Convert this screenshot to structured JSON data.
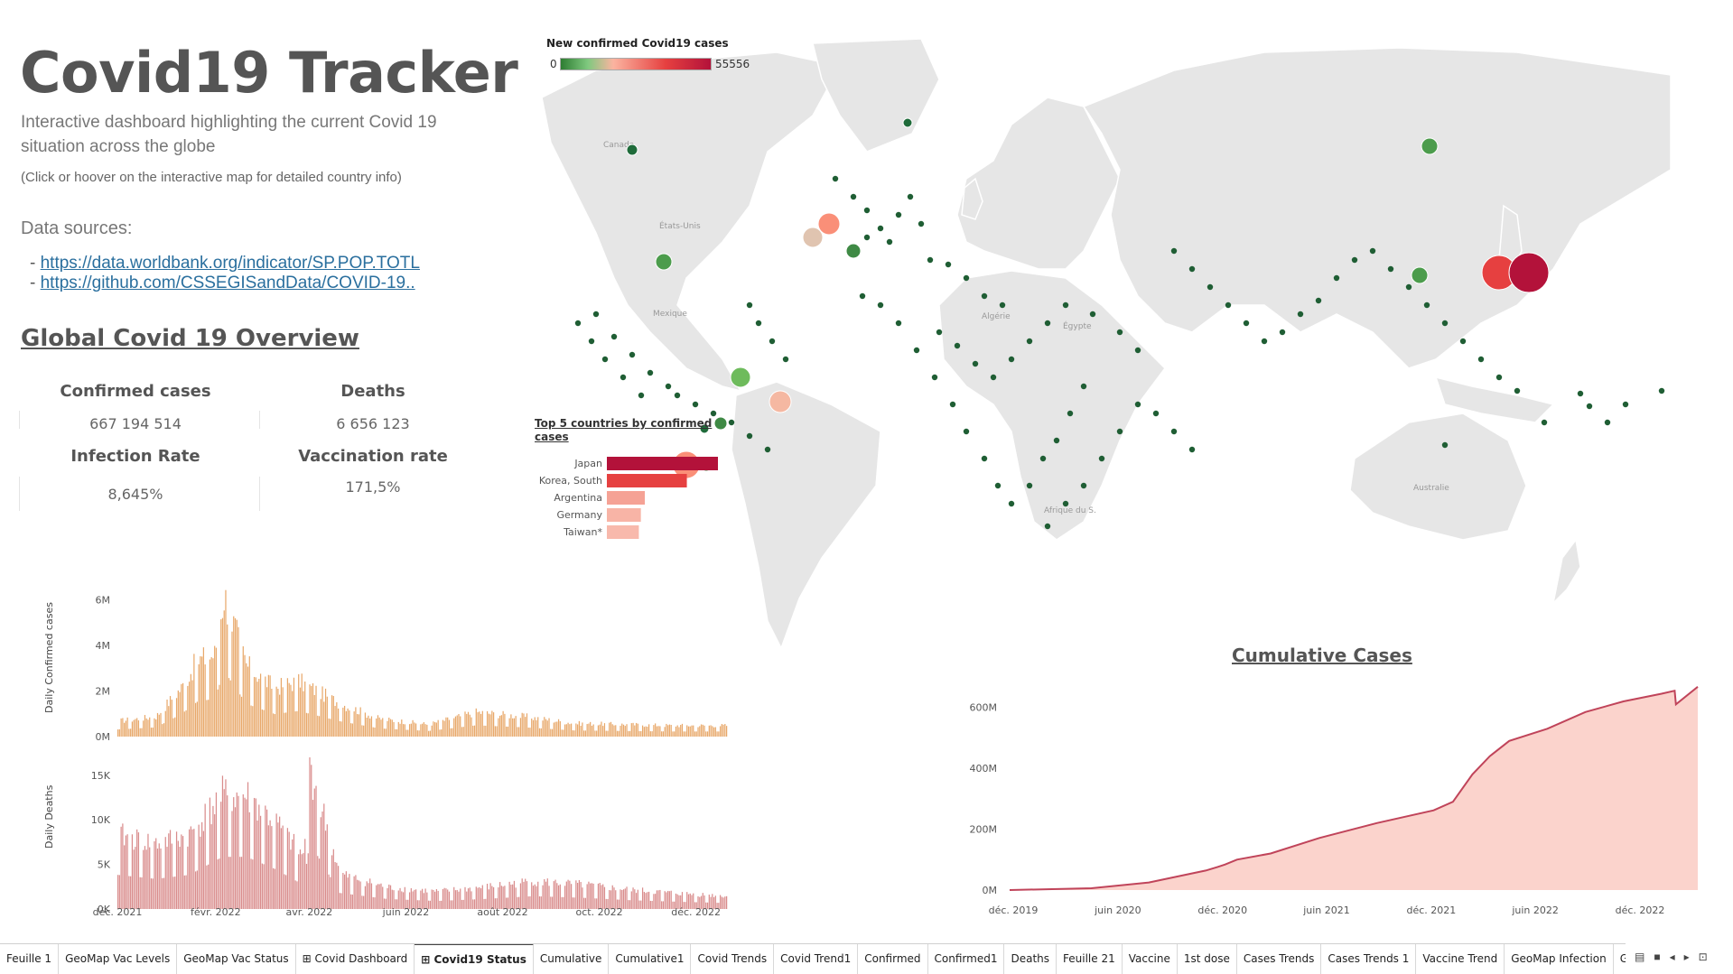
{
  "header": {
    "title": "Covid19 Tracker",
    "subtitle": "Interactive dashboard highlighting the current Covid 19 situation across the globe",
    "hint": "(Click or hoover on the interactive map for detailed country info)",
    "sources_label": "Data sources:",
    "sources": [
      "https://data.worldbank.org/indicator/SP.POP.TOTL",
      "https://github.com/CSSEGISandData/COVID-19.."
    ],
    "source_bullet": "-"
  },
  "overview": {
    "title": "Global Covid 19 Overview",
    "kpis": [
      {
        "label": "Confirmed cases",
        "value": "667 194 514"
      },
      {
        "label": "Deaths",
        "value": "6 656 123"
      },
      {
        "label": "Infection Rate",
        "value": "8,645%"
      },
      {
        "label": "Vaccination rate",
        "value": "171,5%"
      }
    ]
  },
  "map": {
    "legend_title": "New confirmed Covid19 cases",
    "legend_min": "0",
    "legend_max": "55556",
    "colors": {
      "low": "#2e7d32",
      "mid": "#fbb4a0",
      "high": "#b3123a",
      "land": "#e6e6e6",
      "water": "#ffffff"
    },
    "labels": [
      "Canada",
      "États-Unis",
      "Mexique",
      "Algérie",
      "Égypte",
      "Australie",
      "Afrique du S."
    ]
  },
  "chart_data": [
    {
      "type": "bar",
      "title": "Top 5 countries by confirmed cases",
      "categories": [
        "Japan",
        "Korea, South",
        "Argentina",
        "Germany",
        "Taiwan*"
      ],
      "values": [
        55556,
        40000,
        19000,
        17000,
        16000
      ],
      "colors": [
        "#b3123a",
        "#e64040",
        "#f5a295",
        "#f8b4a6",
        "#f8b9ac"
      ]
    },
    {
      "type": "bar",
      "ylabel": "Daily Confirmed cases",
      "ylim": [
        0,
        6500000
      ],
      "yticks": [
        "0M",
        "2M",
        "4M",
        "6M"
      ],
      "xticks": [
        "déc. 2021",
        "févr. 2022",
        "avr. 2022",
        "juin 2022",
        "août 2022",
        "oct. 2022",
        "déc. 2022"
      ],
      "x_range": [
        "2021-12-01",
        "2022-12-20"
      ],
      "color": "#e8a86a",
      "summary_points": [
        {
          "x": "2021-12-01",
          "y": 700000
        },
        {
          "x": "2021-12-25",
          "y": 900000
        },
        {
          "x": "2022-01-10",
          "y": 2200000
        },
        {
          "x": "2022-01-20",
          "y": 3400000
        },
        {
          "x": "2022-01-31",
          "y": 3700000
        },
        {
          "x": "2022-02-06",
          "y": 6400000
        },
        {
          "x": "2022-02-20",
          "y": 3200000
        },
        {
          "x": "2022-03-10",
          "y": 2200000
        },
        {
          "x": "2022-03-25",
          "y": 2500000
        },
        {
          "x": "2022-04-20",
          "y": 1500000
        },
        {
          "x": "2022-05-15",
          "y": 800000
        },
        {
          "x": "2022-06-15",
          "y": 550000
        },
        {
          "x": "2022-07-15",
          "y": 1100000
        },
        {
          "x": "2022-08-15",
          "y": 900000
        },
        {
          "x": "2022-09-15",
          "y": 600000
        },
        {
          "x": "2022-10-15",
          "y": 550000
        },
        {
          "x": "2022-11-15",
          "y": 500000
        },
        {
          "x": "2022-12-20",
          "y": 500000
        }
      ]
    },
    {
      "type": "bar",
      "ylabel": "Daily Deaths",
      "ylim": [
        0,
        17000
      ],
      "yticks": [
        "0K",
        "5K",
        "10K",
        "15K"
      ],
      "xticks": [
        "déc. 2021",
        "févr. 2022",
        "avr. 2022",
        "juin 2022",
        "août 2022",
        "oct. 2022",
        "déc. 2022"
      ],
      "x_range": [
        "2021-12-01",
        "2022-12-20"
      ],
      "color": "#d98c8c",
      "summary_points": [
        {
          "x": "2021-12-01",
          "y": 8500
        },
        {
          "x": "2021-12-25",
          "y": 7500
        },
        {
          "x": "2022-01-15",
          "y": 8500
        },
        {
          "x": "2022-02-05",
          "y": 13000
        },
        {
          "x": "2022-02-20",
          "y": 13000
        },
        {
          "x": "2022-03-10",
          "y": 10000
        },
        {
          "x": "2022-03-28",
          "y": 6000
        },
        {
          "x": "2022-04-01",
          "y": 16500
        },
        {
          "x": "2022-04-20",
          "y": 4000
        },
        {
          "x": "2022-05-20",
          "y": 2500
        },
        {
          "x": "2022-06-20",
          "y": 2000
        },
        {
          "x": "2022-07-20",
          "y": 2500
        },
        {
          "x": "2022-08-20",
          "y": 3200
        },
        {
          "x": "2022-09-20",
          "y": 2800
        },
        {
          "x": "2022-10-20",
          "y": 2200
        },
        {
          "x": "2022-11-20",
          "y": 1800
        },
        {
          "x": "2022-12-20",
          "y": 1500
        }
      ]
    },
    {
      "type": "area",
      "title": "Cumulative Cases",
      "ylim": [
        0,
        700000000
      ],
      "yticks": [
        "0M",
        "200M",
        "400M",
        "600M"
      ],
      "xticks": [
        "déc. 2019",
        "juin 2020",
        "déc. 2020",
        "juin 2021",
        "déc. 2021",
        "juin 2022",
        "déc. 2022"
      ],
      "x_range": [
        "2020-01-22",
        "2023-01-28"
      ],
      "fill": "#fbd3cc",
      "stroke": "#c0445a",
      "points": [
        {
          "x": "2020-01-22",
          "y": 0
        },
        {
          "x": "2020-06-01",
          "y": 6000000
        },
        {
          "x": "2020-09-01",
          "y": 25000000
        },
        {
          "x": "2020-12-01",
          "y": 64000000
        },
        {
          "x": "2020-12-20",
          "y": 76000000
        },
        {
          "x": "2021-01-01",
          "y": 84000000
        },
        {
          "x": "2021-01-20",
          "y": 100000000
        },
        {
          "x": "2021-03-15",
          "y": 120000000
        },
        {
          "x": "2021-06-01",
          "y": 171000000
        },
        {
          "x": "2021-09-01",
          "y": 220000000
        },
        {
          "x": "2021-12-01",
          "y": 262000000
        },
        {
          "x": "2022-01-01",
          "y": 290000000
        },
        {
          "x": "2022-02-01",
          "y": 380000000
        },
        {
          "x": "2022-03-01",
          "y": 440000000
        },
        {
          "x": "2022-04-01",
          "y": 490000000
        },
        {
          "x": "2022-06-01",
          "y": 530000000
        },
        {
          "x": "2022-08-01",
          "y": 585000000
        },
        {
          "x": "2022-10-01",
          "y": 620000000
        },
        {
          "x": "2022-12-01",
          "y": 645000000
        },
        {
          "x": "2022-12-22",
          "y": 655000000
        },
        {
          "x": "2022-12-24",
          "y": 610000000
        },
        {
          "x": "2023-01-28",
          "y": 668000000
        }
      ]
    }
  ],
  "tabs": [
    {
      "label": "Feuille 1",
      "icon": "",
      "active": false
    },
    {
      "label": "GeoMap Vac Levels",
      "icon": "",
      "active": false
    },
    {
      "label": "GeoMap Vac Status",
      "icon": "",
      "active": false
    },
    {
      "label": "Covid Dashboard",
      "icon": "dashboard-icon",
      "active": false
    },
    {
      "label": "Covid19 Status",
      "icon": "dashboard-icon",
      "active": true
    },
    {
      "label": "Cumulative",
      "icon": "",
      "active": false
    },
    {
      "label": "Cumulative1",
      "icon": "",
      "active": false
    },
    {
      "label": "Covid Trends",
      "icon": "",
      "active": false
    },
    {
      "label": "Covid Trend1",
      "icon": "",
      "active": false
    },
    {
      "label": "Confirmed",
      "icon": "",
      "active": false
    },
    {
      "label": "Confirmed1",
      "icon": "",
      "active": false
    },
    {
      "label": "Deaths",
      "icon": "",
      "active": false
    },
    {
      "label": "Feuille 21",
      "icon": "",
      "active": false
    },
    {
      "label": "Vaccine",
      "icon": "",
      "active": false
    },
    {
      "label": "1st dose",
      "icon": "",
      "active": false
    },
    {
      "label": "Cases Trends",
      "icon": "",
      "active": false
    },
    {
      "label": "Cases Trends 1",
      "icon": "",
      "active": false
    },
    {
      "label": "Vaccine Trend",
      "icon": "",
      "active": false
    },
    {
      "label": "GeoMap Infection",
      "icon": "",
      "active": false
    },
    {
      "label": "GeoMap New case",
      "icon": "",
      "active": false
    }
  ]
}
